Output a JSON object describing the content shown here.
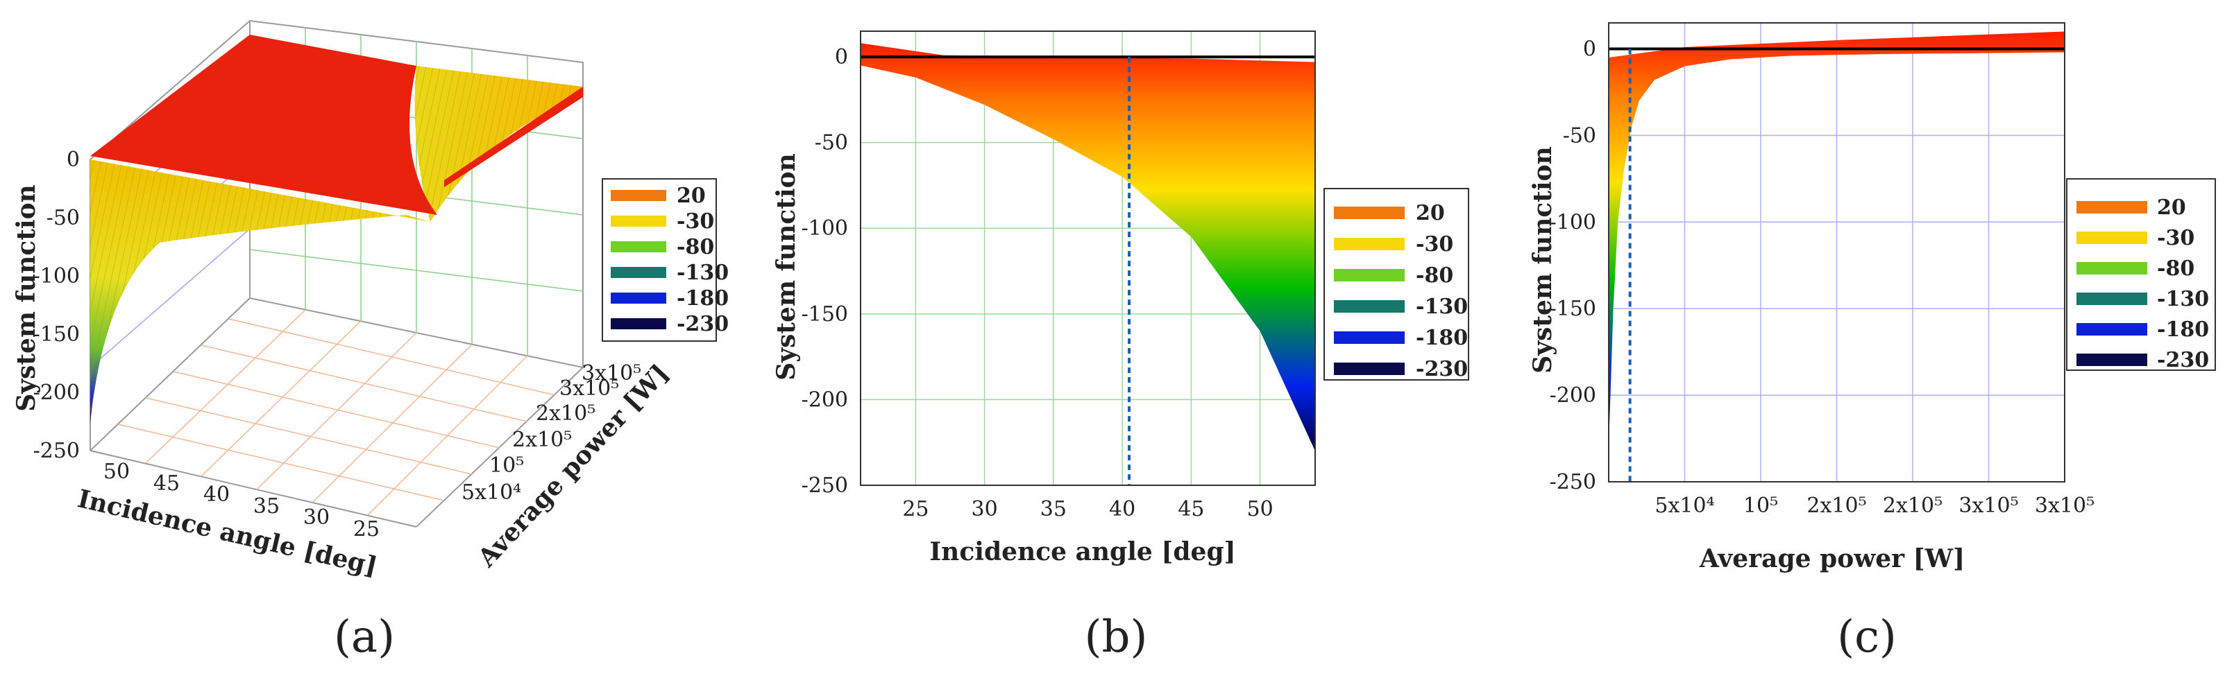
{
  "legend": {
    "entries": [
      {
        "label": "20",
        "color": "#f07810"
      },
      {
        "label": "-30",
        "color": "#f5d80a"
      },
      {
        "label": "-80",
        "color": "#6fd222"
      },
      {
        "label": "-130",
        "color": "#16786c"
      },
      {
        "label": "-180",
        "color": "#0b22d8"
      },
      {
        "label": "-230",
        "color": "#0a0a4a"
      }
    ]
  },
  "chart_data": [
    {
      "panel": "(a)",
      "type": "surface3d",
      "zlabel": "System function",
      "xlabel": "Incidence angle [deg]",
      "ylabel": "Average power [W]",
      "zticks": [
        "0",
        "-50",
        "-100",
        "-150",
        "-200",
        "-250"
      ],
      "xticks": [
        "50",
        "45",
        "40",
        "35",
        "30",
        "25"
      ],
      "yticks": [
        "5x10⁴",
        "10⁵",
        "2x10⁵",
        "2x10⁵",
        "3x10⁵",
        "3x10⁵"
      ],
      "zlim": [
        -250,
        20
      ]
    },
    {
      "panel": "(b)",
      "type": "area",
      "xlabel": "Incidence angle [deg]",
      "ylabel": "System function",
      "xlim": [
        21,
        54
      ],
      "ylim": [
        -250,
        15
      ],
      "xticks": [
        "25",
        "30",
        "35",
        "40",
        "45",
        "50"
      ],
      "xtick_values": [
        25,
        30,
        35,
        40,
        45,
        50
      ],
      "yticks": [
        "0",
        "-50",
        "-100",
        "-150",
        "-200",
        "-250"
      ],
      "ytick_values": [
        0,
        -50,
        -100,
        -150,
        -200,
        -250
      ],
      "upper_x": [
        21,
        27,
        35,
        45,
        54
      ],
      "upper_y": [
        8,
        1,
        0,
        -1,
        -3
      ],
      "lower_x": [
        21,
        25,
        30,
        35,
        40,
        45,
        50,
        54
      ],
      "lower_y": [
        -5,
        -12,
        -28,
        -48,
        -70,
        -105,
        -160,
        -230
      ],
      "marker_x": 40.5
    },
    {
      "panel": "(c)",
      "type": "area",
      "xlabel": "Average power [W]",
      "ylabel": "System function",
      "xlim": [
        0,
        30
      ],
      "ylim": [
        -250,
        15
      ],
      "xticks": [
        "5x10⁴",
        "10⁵",
        "2x10⁵",
        "2x10⁵",
        "3x10⁵",
        "3x10⁵"
      ],
      "xtick_values": [
        5,
        10,
        15,
        20,
        25,
        30
      ],
      "yticks": [
        "0",
        "-50",
        "-100",
        "-150",
        "-200",
        "-250"
      ],
      "ytick_values": [
        0,
        -50,
        -100,
        -150,
        -200,
        -250
      ],
      "upper_x": [
        0,
        5,
        15,
        30
      ],
      "upper_y": [
        -5,
        1,
        5,
        10
      ],
      "lower_x": [
        0,
        0.3,
        0.6,
        1,
        1.5,
        2,
        3,
        5,
        8,
        12,
        18,
        30
      ],
      "lower_y": [
        -230,
        -150,
        -100,
        -70,
        -45,
        -30,
        -18,
        -10,
        -6,
        -4,
        -3,
        -2
      ],
      "marker_x": 1.4
    }
  ],
  "panel_labels": [
    "(a)",
    "(b)",
    "(c)"
  ]
}
